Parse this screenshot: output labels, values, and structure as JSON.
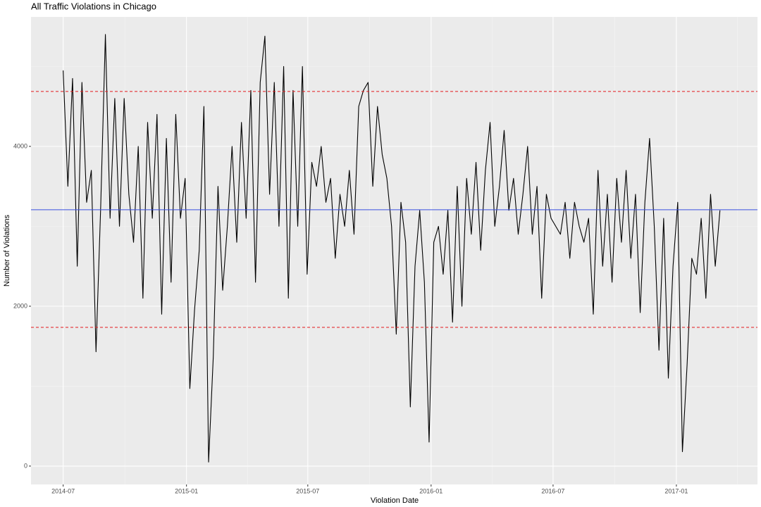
{
  "chart_data": {
    "type": "line",
    "title": "All Traffic Violations in Chicago",
    "x_label": "Violation Date",
    "y_label": "Number of Violations",
    "color": "#000000",
    "grid": true,
    "xlim": [
      -48,
      1036
    ],
    "xticks": [
      {
        "value": 0,
        "label": "2014-07"
      },
      {
        "value": 184,
        "label": "2015-01"
      },
      {
        "value": 365,
        "label": "2015-07"
      },
      {
        "value": 549,
        "label": "2016-01"
      },
      {
        "value": 731,
        "label": "2016-07"
      },
      {
        "value": 915,
        "label": "2017-01"
      }
    ],
    "x_minor_gridlines": [
      92,
      275,
      457,
      640,
      823,
      1006
    ],
    "ylim": [
      -230,
      5620
    ],
    "yticks": [
      0,
      2000,
      4000
    ],
    "y_minor_gridlines": [
      1000,
      3000,
      5000
    ],
    "reference_lines": [
      {
        "value": 4687,
        "color": "#e41a1c",
        "style": "dashed"
      },
      {
        "value": 3207,
        "color": "#3b4fe0",
        "style": "solid"
      },
      {
        "value": 1736,
        "color": "#e41a1c",
        "style": "dashed"
      }
    ],
    "x": [
      0,
      7,
      14,
      21,
      28,
      35,
      42,
      49,
      56,
      63,
      70,
      77,
      84,
      91,
      98,
      105,
      112,
      119,
      126,
      133,
      140,
      147,
      154,
      161,
      168,
      175,
      182,
      189,
      196,
      203,
      210,
      217,
      224,
      231,
      238,
      245,
      252,
      259,
      266,
      273,
      280,
      287,
      294,
      301,
      308,
      315,
      322,
      329,
      336,
      343,
      350,
      357,
      364,
      371,
      378,
      385,
      392,
      399,
      406,
      413,
      420,
      427,
      434,
      441,
      448,
      455,
      462,
      469,
      476,
      483,
      490,
      497,
      504,
      511,
      518,
      525,
      532,
      539,
      546,
      553,
      560,
      567,
      574,
      581,
      588,
      595,
      602,
      609,
      616,
      623,
      630,
      637,
      644,
      651,
      658,
      665,
      672,
      679,
      686,
      693,
      700,
      707,
      714,
      721,
      728,
      735,
      742,
      749,
      756,
      763,
      770,
      777,
      784,
      791,
      798,
      805,
      812,
      819,
      826,
      833,
      840,
      847,
      854,
      861,
      868,
      875,
      882,
      889,
      896,
      903,
      910,
      917,
      924,
      931,
      938,
      945,
      952,
      959,
      966,
      973,
      980
    ],
    "values": [
      4950,
      3500,
      4850,
      2500,
      4800,
      3300,
      3700,
      1430,
      3250,
      5400,
      3100,
      4600,
      3000,
      4600,
      3400,
      2800,
      4000,
      2100,
      4300,
      3100,
      4400,
      1900,
      4100,
      2300,
      4400,
      3100,
      3600,
      970,
      1950,
      2700,
      4500,
      50,
      1370,
      3500,
      2200,
      3000,
      4000,
      2800,
      4300,
      3100,
      4700,
      2300,
      4800,
      5380,
      3400,
      4800,
      3000,
      5000,
      2100,
      4700,
      3000,
      5000,
      2400,
      3800,
      3500,
      4000,
      3300,
      3600,
      2600,
      3400,
      3000,
      3700,
      2900,
      4500,
      4700,
      4800,
      3500,
      4500,
      3900,
      3600,
      3000,
      1650,
      3300,
      2800,
      740,
      2500,
      3200,
      2300,
      300,
      2800,
      3000,
      2400,
      3200,
      1800,
      3500,
      2000,
      3600,
      2900,
      3800,
      2700,
      3700,
      4300,
      3000,
      3500,
      4200,
      3200,
      3600,
      2900,
      3400,
      4000,
      2900,
      3500,
      2100,
      3400,
      3100,
      3000,
      2900,
      3300,
      2600,
      3300,
      3000,
      2800,
      3100,
      1900,
      3700,
      2500,
      3400,
      2300,
      3600,
      2800,
      3700,
      2600,
      3400,
      1920,
      3300,
      4100,
      3000,
      1450,
      3100,
      1100,
      2500,
      3300,
      180,
      1270,
      2600,
      2400,
      3100,
      2100,
      3400,
      2500,
      3200
    ]
  }
}
